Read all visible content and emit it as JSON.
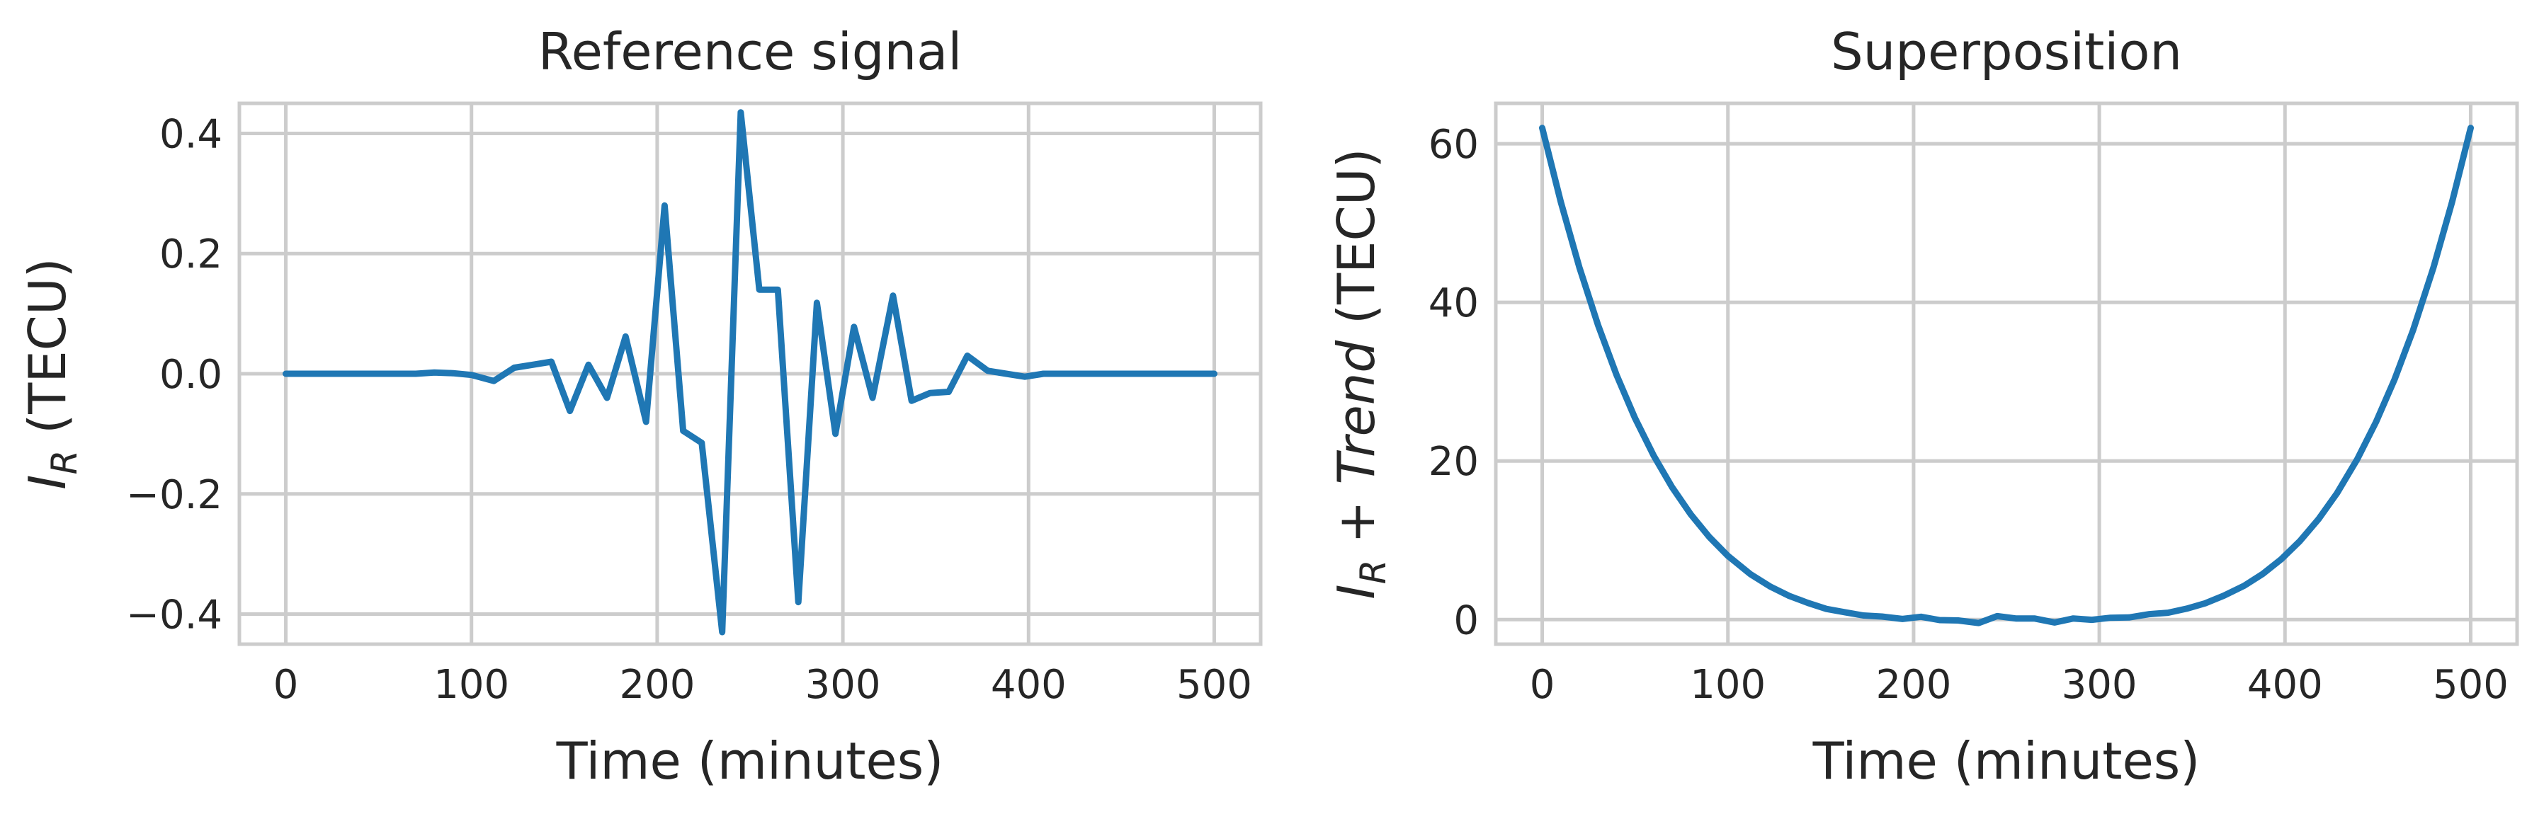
{
  "colors": {
    "series": "#1f77b4",
    "grid": "#cccccc",
    "text": "#262626"
  },
  "chart_data": [
    {
      "type": "line",
      "title": "Reference signal",
      "xlabel": "Time (minutes)",
      "ylabel": {
        "var": "I",
        "sub": "R",
        "unit": " (TECU)"
      },
      "xlim": [
        -25,
        525
      ],
      "ylim": [
        -0.45,
        0.45
      ],
      "xticks": [
        0,
        100,
        200,
        300,
        400,
        500
      ],
      "yticks": [
        -0.4,
        -0.2,
        0.0,
        0.2,
        0.4
      ],
      "xtick_labels": [
        "0",
        "100",
        "200",
        "300",
        "400",
        "500"
      ],
      "ytick_labels": [
        "−0.4",
        "−0.2",
        "0.0",
        "0.2",
        "0.4"
      ],
      "grid": true,
      "series": [
        {
          "x": [
            0,
            10,
            20,
            30,
            40,
            50,
            60,
            70,
            80,
            90,
            100,
            112,
            123,
            133,
            143,
            153,
            163,
            173,
            183,
            194,
            204,
            214,
            224,
            235,
            245,
            255,
            265,
            276,
            286,
            296,
            306,
            316,
            327,
            337,
            347,
            357,
            367,
            378,
            388,
            398,
            408,
            418,
            428,
            439,
            449,
            459,
            469,
            480,
            490,
            500
          ],
          "y": [
            0.0,
            0.0,
            0.0,
            0.0,
            0.0,
            0.0,
            0.0,
            0.0,
            0.002,
            0.001,
            -0.002,
            -0.012,
            0.01,
            0.015,
            0.02,
            -0.062,
            0.015,
            -0.04,
            0.062,
            -0.08,
            0.28,
            -0.095,
            -0.115,
            -0.43,
            0.435,
            0.14,
            0.14,
            -0.38,
            0.118,
            -0.1,
            0.078,
            -0.04,
            0.13,
            -0.045,
            -0.032,
            -0.03,
            0.03,
            0.005,
            0.0,
            -0.005,
            0.0,
            0.0,
            0.0,
            0.0,
            0.0,
            0.0,
            0.0,
            0.0,
            0.0,
            0.0
          ]
        }
      ]
    },
    {
      "type": "line",
      "title": "Superposition",
      "xlabel": "Time (minutes)",
      "ylabel": {
        "var": "I",
        "sub": "R",
        "plus": " + ",
        "italic": "Trend",
        "unit": " (TECU)"
      },
      "xlim": [
        -25,
        525
      ],
      "ylim": [
        -3.1,
        65.1
      ],
      "xticks": [
        0,
        100,
        200,
        300,
        400,
        500
      ],
      "yticks": [
        0,
        20,
        40,
        60
      ],
      "xtick_labels": [
        "0",
        "100",
        "200",
        "300",
        "400",
        "500"
      ],
      "ytick_labels": [
        "0",
        "20",
        "40",
        "60"
      ],
      "grid": true,
      "series": [
        {
          "trend": {
            "center": 250,
            "scale": 62,
            "halfwidth": 250,
            "power": 4
          }
        }
      ]
    }
  ]
}
